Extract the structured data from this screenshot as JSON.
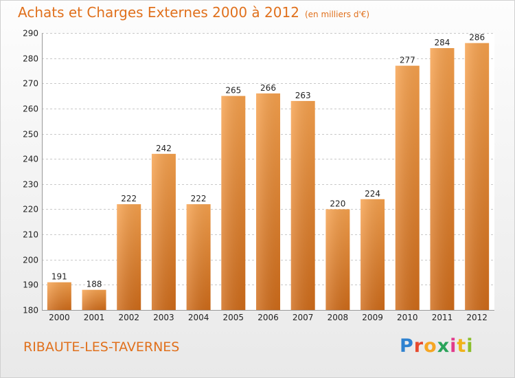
{
  "chart_data": {
    "type": "bar",
    "title": "Achats et Charges Externes 2000 à 2012",
    "subtitle": "(en milliers d'€)",
    "categories": [
      "2000",
      "2001",
      "2002",
      "2003",
      "2004",
      "2005",
      "2006",
      "2007",
      "2008",
      "2009",
      "2010",
      "2011",
      "2012"
    ],
    "values": [
      191,
      188,
      222,
      242,
      222,
      265,
      266,
      263,
      220,
      224,
      277,
      284,
      286
    ],
    "ylim": [
      180,
      290
    ],
    "yticks": [
      180,
      190,
      200,
      210,
      220,
      230,
      240,
      250,
      260,
      270,
      280,
      290
    ],
    "grid": true,
    "bar_color_top": "#f7a24e",
    "bar_color_bottom": "#d06c1a"
  },
  "location": "RIBAUTE-LES-TAVERNES",
  "logo": {
    "p": "P",
    "r": "r",
    "o": "o",
    "x": "x",
    "i": "i",
    "t": "t",
    "i2": "i"
  }
}
